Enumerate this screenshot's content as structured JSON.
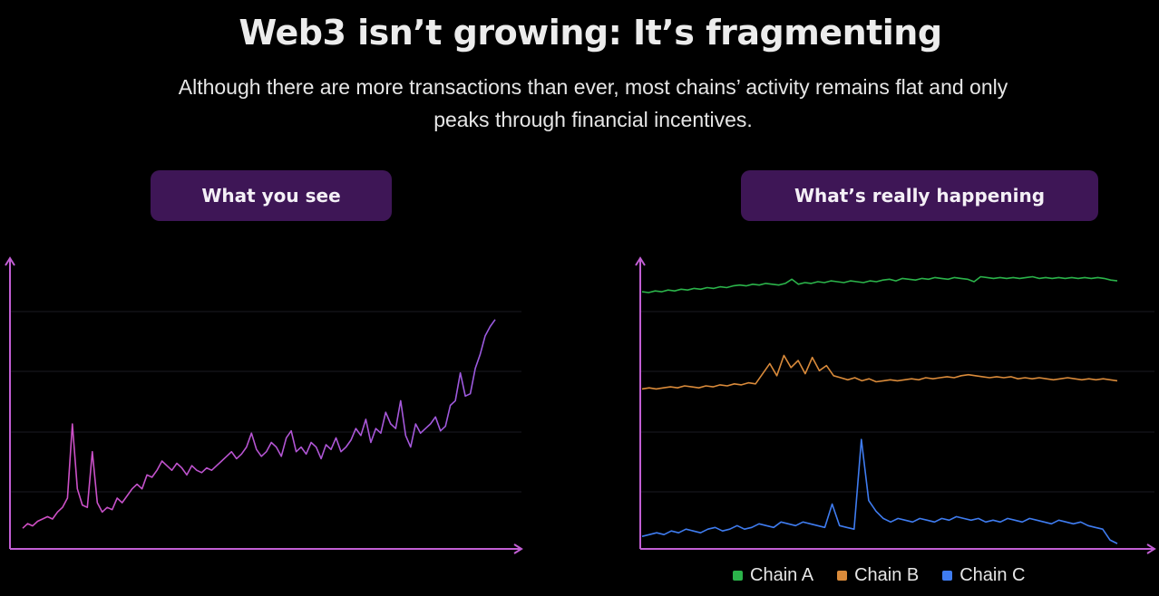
{
  "header": {
    "title": "Web3 isn’t growing:  It’s fragmenting",
    "subtitle": "Although there are more transactions than ever, most chains’ activity remains flat and only peaks through financial incentives."
  },
  "panels": {
    "left_label": "What you see",
    "right_label": "What’s really happening"
  },
  "colors": {
    "background": "#000000",
    "pill": "#3e1656",
    "axis": "#c25fd4",
    "grid": "#1a1a22",
    "total": "#b154d6",
    "chain_a": "#2bb34a",
    "chain_b": "#d98a3a",
    "chain_c": "#3f7cf0"
  },
  "chart_data": [
    {
      "type": "line",
      "title": "What you see",
      "xlabel": "",
      "ylabel": "",
      "grid": true,
      "ylim": [
        0,
        100
      ],
      "series": [
        {
          "color": "#b154d6",
          "values": [
            5,
            7,
            6,
            8,
            9,
            10,
            9,
            12,
            14,
            18,
            50,
            22,
            15,
            14,
            38,
            16,
            12,
            14,
            13,
            18,
            16,
            19,
            22,
            24,
            22,
            28,
            27,
            30,
            34,
            32,
            30,
            33,
            31,
            28,
            32,
            30,
            29,
            31,
            30,
            32,
            34,
            36,
            38,
            35,
            37,
            40,
            46,
            39,
            36,
            38,
            42,
            40,
            36,
            44,
            47,
            38,
            40,
            37,
            42,
            40,
            35,
            41,
            39,
            44,
            38,
            40,
            43,
            48,
            45,
            52,
            42,
            48,
            46,
            55,
            50,
            48,
            60,
            45,
            40,
            50,
            46,
            48,
            50,
            53,
            47,
            49,
            58,
            60,
            72,
            62,
            63,
            74,
            80,
            88,
            92,
            95
          ]
        }
      ]
    },
    {
      "type": "line",
      "title": "What’s really happening",
      "xlabel": "",
      "ylabel": "",
      "grid": true,
      "legend": "bottom-right",
      "ylim": [
        0,
        100
      ],
      "series": [
        {
          "name": "Chain A",
          "color": "#2bb34a",
          "values": [
            76,
            75,
            77,
            76,
            78,
            77,
            79,
            78,
            80,
            79,
            81,
            80,
            82,
            81,
            83,
            84,
            83,
            85,
            84,
            86,
            85,
            84,
            86,
            91,
            85,
            87,
            86,
            88,
            87,
            89,
            88,
            87,
            89,
            88,
            87,
            89,
            88,
            90,
            91,
            89,
            92,
            91,
            90,
            92,
            91,
            93,
            92,
            91,
            93,
            92,
            91,
            88,
            94,
            93,
            92,
            93,
            92,
            93,
            92,
            93,
            94,
            92,
            93,
            92,
            93,
            92,
            93,
            92,
            93,
            92,
            93,
            92,
            90,
            89
          ]
        },
        {
          "name": "Chain B",
          "color": "#d98a3a",
          "values": [
            47,
            48,
            47,
            48,
            49,
            48,
            50,
            49,
            48,
            50,
            49,
            51,
            50,
            52,
            51,
            53,
            52,
            62,
            72,
            60,
            80,
            68,
            75,
            62,
            78,
            65,
            70,
            60,
            58,
            56,
            58,
            55,
            57,
            54,
            55,
            56,
            55,
            56,
            57,
            56,
            58,
            57,
            58,
            59,
            58,
            60,
            61,
            60,
            59,
            58,
            59,
            58,
            59,
            57,
            58,
            57,
            58,
            57,
            56,
            57,
            58,
            57,
            56,
            57,
            56,
            57,
            56,
            55
          ]
        },
        {
          "name": "Chain C",
          "color": "#3f7cf0",
          "values": [
            8,
            9,
            10,
            9,
            11,
            10,
            12,
            11,
            10,
            12,
            13,
            11,
            12,
            14,
            12,
            13,
            15,
            14,
            13,
            16,
            15,
            14,
            16,
            15,
            14,
            13,
            26,
            14,
            13,
            12,
            62,
            28,
            22,
            18,
            16,
            18,
            17,
            16,
            18,
            17,
            16,
            18,
            17,
            19,
            18,
            17,
            18,
            16,
            17,
            16,
            18,
            17,
            16,
            18,
            17,
            16,
            15,
            17,
            16,
            15,
            16,
            14,
            13,
            12,
            6,
            4
          ]
        }
      ]
    }
  ]
}
